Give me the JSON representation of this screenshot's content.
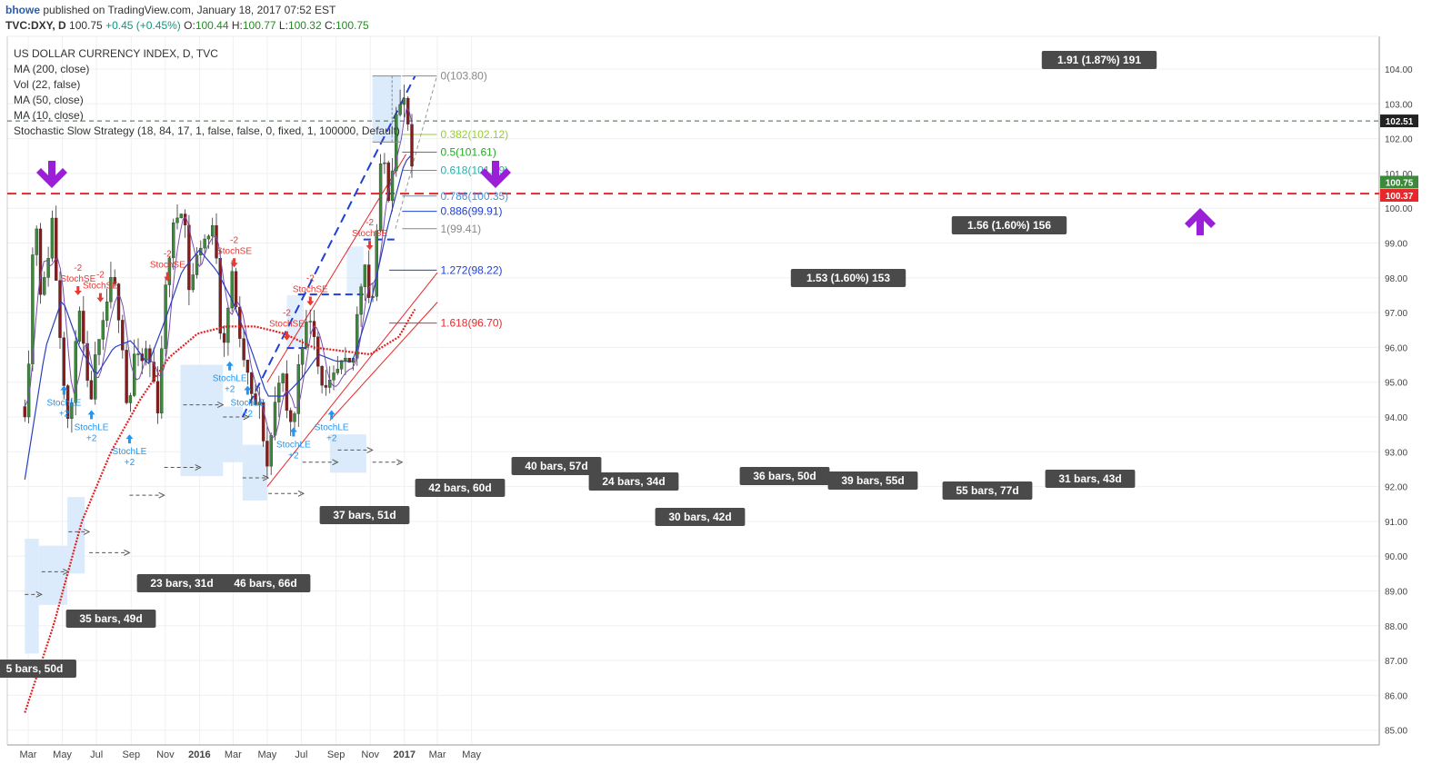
{
  "header": {
    "author": "bhowe",
    "published": "published on TradingView.com, January 18, 2017 07:52 EST",
    "symbol": "TVC:DXY, D",
    "last": "100.75",
    "change": "+0.45 (+0.45%)",
    "open_label": "O:",
    "open": "100.44",
    "high_label": "H:",
    "high": "100.77",
    "low_label": "L:",
    "low": "100.32",
    "close_label": "C:",
    "close": "100.75"
  },
  "legend": [
    "US DOLLAR CURRENCY INDEX, D, TVC",
    "MA (200, close)",
    "Vol (22, false)",
    "MA (50, close)",
    "MA (10, close)",
    "Stochastic Slow Strategy (18, 84, 17, 1, false, false, 0, fixed, 1, 100000, Default)"
  ],
  "colors": {
    "up": "#3a8a3a",
    "down": "#8b1a1a",
    "ma200": "#e02020",
    "ma50": "#2a3fc0",
    "ma10": "#7a4fb0",
    "blue_box": "#d6e8fb",
    "label_bg": "#4a4a4a",
    "arrow": "#9b1fd6",
    "resistance": "#e8272a",
    "channel": "#e8272a",
    "trend_blue": "#1f3fd6"
  },
  "chart_data": {
    "type": "candlestick",
    "title": "US DOLLAR CURRENCY INDEX, D, TVC",
    "x_ticks": [
      "Mar",
      "May",
      "Jul",
      "Sep",
      "Nov",
      "2016",
      "Mar",
      "May",
      "Jul",
      "Sep",
      "Nov",
      "2017",
      "Mar",
      "May"
    ],
    "y_ticks": [
      "104.00",
      "103.00",
      "102.00",
      "101.00",
      "100.00",
      "99.00",
      "98.00",
      "97.00",
      "96.00",
      "95.00",
      "94.00",
      "93.00",
      "92.00",
      "91.00",
      "90.00",
      "89.00",
      "88.00",
      "87.00",
      "86.00",
      "85.00"
    ],
    "ylim": [
      84.5,
      104.8
    ],
    "price_tags": [
      {
        "text": "102.51",
        "value": 102.51,
        "bg": "#222222"
      },
      {
        "text": "100.75",
        "value": 100.75,
        "bg": "#3a8a3a"
      },
      {
        "text": "100.37",
        "value": 100.37,
        "bg": "#e8272a"
      }
    ],
    "fib_levels": [
      {
        "text": "0(103.80)",
        "value": 103.8,
        "color": "#888888"
      },
      {
        "text": "0.382(102.12)",
        "value": 102.12,
        "color": "#9acd32"
      },
      {
        "text": "0.5(101.61)",
        "value": 101.61,
        "color": "#22aa22"
      },
      {
        "text": "0.618(101.09)",
        "value": 101.09,
        "color": "#20b2aa"
      },
      {
        "text": "0.786(100.35)",
        "value": 100.35,
        "color": "#4a90e2"
      },
      {
        "text": "0.886(99.91)",
        "value": 99.91,
        "color": "#1f3fd6"
      },
      {
        "text": "1(99.41)",
        "value": 99.41,
        "color": "#888888"
      },
      {
        "text": "1.272(98.22)",
        "value": 98.22,
        "color": "#1f3fd6"
      },
      {
        "text": "1.618(96.70)",
        "value": 96.7,
        "color": "#e8272a"
      }
    ],
    "measure_labels": [
      {
        "text": "1.91 (1.87%) 191"
      },
      {
        "text": "1.56 (1.60%) 156"
      },
      {
        "text": "1.53 (1.60%) 153"
      }
    ],
    "range_labels": [
      "5 bars, 50d",
      "35 bars, 49d",
      "23 bars, 31d",
      "46 bars, 66d",
      "37 bars, 51d",
      "42 bars, 60d",
      "40 bars, 57d",
      "24 bars, 34d",
      "30 bars, 42d",
      "36 bars, 50d",
      "39 bars, 55d",
      "55 bars, 77d",
      "31 bars, 43d"
    ],
    "signals": [
      {
        "type": "StochLE",
        "label": "StochLE",
        "qty": "+2"
      },
      {
        "type": "StochLE",
        "label": "StochLE",
        "qty": "+2"
      },
      {
        "type": "StochLE",
        "label": "StochLE",
        "qty": "+2"
      },
      {
        "type": "StochLE",
        "label": "StochLE",
        "qty": "+2"
      },
      {
        "type": "StochLE",
        "label": "StochLE",
        "qty": "+2"
      },
      {
        "type": "StochLE",
        "label": "StochLE",
        "qty": "+2"
      },
      {
        "type": "StochLE",
        "label": "StochLE",
        "qty": "+2"
      },
      {
        "type": "StochSE",
        "label": "StochSE",
        "qty": "-2"
      },
      {
        "type": "StochSE",
        "label": "StochSE",
        "qty": "-2"
      },
      {
        "type": "StochSE",
        "label": "StochSE",
        "qty": "-2"
      },
      {
        "type": "StochSE",
        "label": "StochSE",
        "qty": "-2"
      },
      {
        "type": "StochSE",
        "label": "StochSE",
        "qty": "-2"
      },
      {
        "type": "StochSE",
        "label": "StochSE",
        "qty": "-2"
      },
      {
        "type": "StochSE",
        "label": "StochSE",
        "qty": "-2"
      }
    ],
    "close_path": [
      [
        "2015-02-23",
        94.3
      ],
      [
        "2015-03-02",
        95.8
      ],
      [
        "2015-03-13",
        100.3
      ],
      [
        "2015-03-25",
        97.2
      ],
      [
        "2015-04-02",
        98.2
      ],
      [
        "2015-04-13",
        99.7
      ],
      [
        "2015-04-25",
        96.8
      ],
      [
        "2015-05-06",
        94.8
      ],
      [
        "2015-05-15",
        93.2
      ],
      [
        "2015-05-27",
        97.2
      ],
      [
        "2015-06-05",
        96.4
      ],
      [
        "2015-06-18",
        94.2
      ],
      [
        "2015-07-01",
        95.8
      ],
      [
        "2015-07-10",
        96.2
      ],
      [
        "2015-07-24",
        97.8
      ],
      [
        "2015-08-05",
        97.6
      ],
      [
        "2015-08-16",
        96.3
      ],
      [
        "2015-08-26",
        93.9
      ],
      [
        "2015-09-06",
        95.8
      ],
      [
        "2015-09-17",
        95.4
      ],
      [
        "2015-09-27",
        95.9
      ],
      [
        "2015-10-08",
        95.4
      ],
      [
        "2015-10-18",
        94.2
      ],
      [
        "2015-10-29",
        97.0
      ],
      [
        "2015-11-10",
        99.0
      ],
      [
        "2015-11-22",
        99.8
      ],
      [
        "2015-12-03",
        100.3
      ],
      [
        "2015-12-14",
        97.6
      ],
      [
        "2015-12-23",
        98.3
      ],
      [
        "2016-01-05",
        99.1
      ],
      [
        "2016-01-18",
        99.2
      ],
      [
        "2016-01-29",
        99.4
      ],
      [
        "2016-02-10",
        95.8
      ],
      [
        "2016-02-22",
        97.3
      ],
      [
        "2016-03-02",
        98.3
      ],
      [
        "2016-03-11",
        96.1
      ],
      [
        "2016-03-22",
        95.6
      ],
      [
        "2016-04-03",
        94.5
      ],
      [
        "2016-04-18",
        94.2
      ],
      [
        "2016-05-01",
        92.6
      ],
      [
        "2016-05-12",
        94.0
      ],
      [
        "2016-05-25",
        95.6
      ],
      [
        "2016-06-06",
        93.9
      ],
      [
        "2016-06-19",
        94.0
      ],
      [
        "2016-06-28",
        96.1
      ],
      [
        "2016-07-09",
        96.5
      ],
      [
        "2016-07-20",
        97.1
      ],
      [
        "2016-07-31",
        95.5
      ],
      [
        "2016-08-15",
        94.6
      ],
      [
        "2016-08-27",
        95.0
      ],
      [
        "2016-09-08",
        95.4
      ],
      [
        "2016-09-20",
        95.4
      ],
      [
        "2016-09-30",
        95.4
      ],
      [
        "2016-10-11",
        97.3
      ],
      [
        "2016-10-22",
        98.7
      ],
      [
        "2016-11-01",
        97.1
      ],
      [
        "2016-11-08",
        97.8
      ],
      [
        "2016-11-17",
        100.9
      ],
      [
        "2016-11-27",
        101.3
      ],
      [
        "2016-12-07",
        100.0
      ],
      [
        "2016-12-15",
        103.0
      ],
      [
        "2016-12-26",
        102.9
      ],
      [
        "2017-01-04",
        103.1
      ],
      [
        "2017-01-12",
        101.4
      ],
      [
        "2017-01-17",
        100.4
      ]
    ],
    "ma200_path": [
      [
        "2015-02-23",
        85.5
      ],
      [
        "2015-04-15",
        88.0
      ],
      [
        "2015-06-05",
        91.0
      ],
      [
        "2015-07-27",
        93.0
      ],
      [
        "2015-09-17",
        94.5
      ],
      [
        "2015-11-07",
        95.7
      ],
      [
        "2015-12-29",
        96.4
      ],
      [
        "2016-02-18",
        96.6
      ],
      [
        "2016-04-10",
        96.6
      ],
      [
        "2016-05-31",
        96.4
      ],
      [
        "2016-07-22",
        96.0
      ],
      [
        "2016-09-11",
        95.9
      ],
      [
        "2016-11-01",
        95.8
      ],
      [
        "2016-12-22",
        96.3
      ],
      [
        "2017-01-20",
        97.1
      ]
    ],
    "ma50_path": [
      [
        "2015-02-23",
        92.2
      ],
      [
        "2015-04-01",
        96.0
      ],
      [
        "2015-05-01",
        97.4
      ],
      [
        "2015-06-01",
        96.0
      ],
      [
        "2015-07-01",
        95.2
      ],
      [
        "2015-08-01",
        96.0
      ],
      [
        "2015-09-01",
        96.2
      ],
      [
        "2015-10-01",
        95.5
      ],
      [
        "2015-11-01",
        96.8
      ],
      [
        "2015-12-01",
        98.2
      ],
      [
        "2016-01-01",
        98.8
      ],
      [
        "2016-02-01",
        98.2
      ],
      [
        "2016-03-01",
        97.3
      ],
      [
        "2016-04-01",
        96.0
      ],
      [
        "2016-05-01",
        94.6
      ],
      [
        "2016-06-01",
        94.6
      ],
      [
        "2016-07-01",
        95.1
      ],
      [
        "2016-08-01",
        95.8
      ],
      [
        "2016-09-01",
        95.6
      ],
      [
        "2016-10-01",
        95.6
      ],
      [
        "2016-11-01",
        97.2
      ],
      [
        "2016-12-01",
        99.4
      ],
      [
        "2017-01-01",
        101.3
      ],
      [
        "2017-01-17",
        101.6
      ]
    ]
  }
}
